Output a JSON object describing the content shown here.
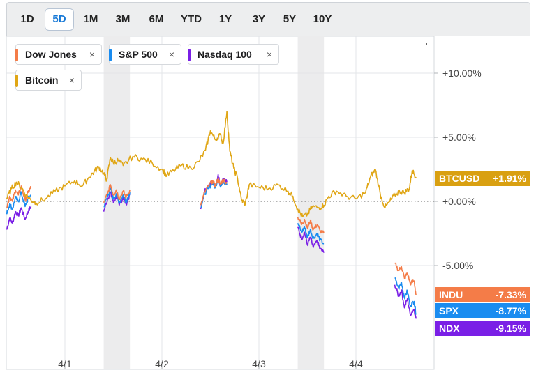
{
  "timeframe_tabs": [
    "1D",
    "5D",
    "1M",
    "3M",
    "6M",
    "YTD",
    "1Y",
    "3Y",
    "5Y",
    "10Y"
  ],
  "active_tab": "5D",
  "legend": [
    {
      "label": "Dow Jones",
      "color": "#f47c48"
    },
    {
      "label": "S&P 500",
      "color": "#1a8cf0"
    },
    {
      "label": "Nasdaq 100",
      "color": "#7a1fe6"
    },
    {
      "label": "Bitcoin",
      "color": "#e0a615"
    }
  ],
  "close_glyph": "×",
  "end_tags": [
    {
      "symbol": "BTCUSD",
      "value": "+1.91%",
      "color": "#d9a011"
    },
    {
      "symbol": "INDU",
      "value": "-7.33%",
      "color": "#f47c48"
    },
    {
      "symbol": "SPX",
      "value": "-8.77%",
      "color": "#1a8cf0"
    },
    {
      "symbol": "NDX",
      "value": "-9.15%",
      "color": "#7a1fe6"
    }
  ],
  "chart_data": {
    "type": "line",
    "x_tick_labels": [
      "4/1",
      "4/2",
      "4/3",
      "4/4"
    ],
    "y_tick_labels": [
      "+10.00%",
      "+5.00%",
      "+0.00%",
      "-5.00%"
    ],
    "y_ticks": [
      10,
      5,
      0,
      -5
    ],
    "ylim": [
      -10,
      12
    ],
    "x_unit": "days from 4/1 00:00 (local)",
    "xlim": [
      -0.6,
      3.8
    ],
    "shaded_sessions": [
      [
        0.4,
        0.67
      ],
      [
        2.4,
        2.67
      ]
    ],
    "zero_line": "dotted",
    "grid": "vertical at day ticks, horizontal at percent ticks",
    "series": [
      {
        "name": "Bitcoin",
        "color": "#e0a615",
        "points": [
          [
            -0.6,
            0.2
          ],
          [
            -0.55,
            1.0
          ],
          [
            -0.5,
            1.5
          ],
          [
            -0.45,
            1.1
          ],
          [
            -0.4,
            0.5
          ],
          [
            -0.35,
            0.1
          ],
          [
            -0.3,
            -0.1
          ],
          [
            -0.2,
            0.2
          ],
          [
            -0.1,
            0.8
          ],
          [
            0.0,
            1.2
          ],
          [
            0.1,
            1.6
          ],
          [
            0.18,
            1.2
          ],
          [
            0.25,
            1.9
          ],
          [
            0.3,
            2.3
          ],
          [
            0.35,
            2.7
          ],
          [
            0.4,
            2.2
          ],
          [
            0.43,
            1.7
          ],
          [
            0.47,
            3.4
          ],
          [
            0.5,
            3.0
          ],
          [
            0.55,
            3.2
          ],
          [
            0.6,
            2.8
          ],
          [
            0.7,
            3.5
          ],
          [
            0.8,
            3.3
          ],
          [
            0.9,
            3.0
          ],
          [
            1.0,
            2.5
          ],
          [
            1.05,
            2.0
          ],
          [
            1.12,
            2.4
          ],
          [
            1.2,
            2.8
          ],
          [
            1.3,
            2.6
          ],
          [
            1.38,
            3.1
          ],
          [
            1.45,
            4.0
          ],
          [
            1.5,
            5.5
          ],
          [
            1.55,
            4.8
          ],
          [
            1.6,
            5.2
          ],
          [
            1.63,
            4.5
          ],
          [
            1.67,
            7.0
          ],
          [
            1.7,
            3.9
          ],
          [
            1.74,
            2.6
          ],
          [
            1.78,
            1.8
          ],
          [
            1.82,
            0.1
          ],
          [
            1.86,
            -0.2
          ],
          [
            1.9,
            1.3
          ],
          [
            2.0,
            1.1
          ],
          [
            2.1,
            1.0
          ],
          [
            2.2,
            1.3
          ],
          [
            2.3,
            0.8
          ],
          [
            2.35,
            0.4
          ],
          [
            2.4,
            -0.6
          ],
          [
            2.45,
            -1.2
          ],
          [
            2.5,
            -1.0
          ],
          [
            2.55,
            -0.4
          ],
          [
            2.62,
            -0.5
          ],
          [
            2.67,
            -0.3
          ],
          [
            2.72,
            0.4
          ],
          [
            2.8,
            0.8
          ],
          [
            2.9,
            0.4
          ],
          [
            3.0,
            0.2
          ],
          [
            3.1,
            0.7
          ],
          [
            3.15,
            1.9
          ],
          [
            3.2,
            2.5
          ],
          [
            3.25,
            0.6
          ],
          [
            3.3,
            -0.5
          ],
          [
            3.35,
            0.0
          ],
          [
            3.4,
            0.5
          ],
          [
            3.45,
            0.8
          ],
          [
            3.5,
            0.7
          ],
          [
            3.55,
            1.0
          ],
          [
            3.58,
            2.4
          ],
          [
            3.62,
            1.91
          ]
        ]
      },
      {
        "name": "Dow Jones",
        "color": "#f47c48",
        "segments": [
          [
            [
              -0.6,
              -0.5
            ],
            [
              -0.57,
              0.4
            ],
            [
              -0.54,
              0.0
            ],
            [
              -0.51,
              0.9
            ],
            [
              -0.48,
              0.5
            ],
            [
              -0.45,
              1.2
            ],
            [
              -0.41,
              0.1
            ],
            [
              -0.38,
              0.7
            ],
            [
              -0.35,
              1.1
            ]
          ],
          [
            [
              0.4,
              -0.1
            ],
            [
              0.44,
              0.6
            ],
            [
              0.47,
              1.3
            ],
            [
              0.5,
              0.5
            ],
            [
              0.53,
              0.9
            ],
            [
              0.56,
              0.2
            ],
            [
              0.6,
              0.8
            ],
            [
              0.63,
              0.3
            ],
            [
              0.67,
              0.9
            ]
          ],
          [
            [
              1.4,
              -0.3
            ],
            [
              1.44,
              0.7
            ],
            [
              1.48,
              1.2
            ],
            [
              1.52,
              1.6
            ],
            [
              1.55,
              1.2
            ],
            [
              1.58,
              1.8
            ],
            [
              1.6,
              1.3
            ],
            [
              1.63,
              1.7
            ],
            [
              1.67,
              1.4
            ]
          ],
          [
            [
              2.4,
              -1.2
            ],
            [
              2.44,
              -1.8
            ],
            [
              2.47,
              -1.4
            ],
            [
              2.5,
              -2.1
            ],
            [
              2.53,
              -1.5
            ],
            [
              2.56,
              -2.2
            ],
            [
              2.6,
              -1.8
            ],
            [
              2.63,
              -2.3
            ],
            [
              2.67,
              -2.5
            ]
          ],
          [
            [
              3.4,
              -4.8
            ],
            [
              3.44,
              -5.4
            ],
            [
              3.47,
              -5.1
            ],
            [
              3.5,
              -6.0
            ],
            [
              3.53,
              -5.6
            ],
            [
              3.56,
              -6.4
            ],
            [
              3.6,
              -6.2
            ],
            [
              3.62,
              -7.33
            ]
          ]
        ]
      },
      {
        "name": "S&P 500",
        "color": "#1a8cf0",
        "segments": [
          [
            [
              -0.6,
              -1.0
            ],
            [
              -0.57,
              -0.2
            ],
            [
              -0.54,
              -0.6
            ],
            [
              -0.51,
              0.3
            ],
            [
              -0.48,
              0.0
            ],
            [
              -0.45,
              0.7
            ],
            [
              -0.41,
              -0.4
            ],
            [
              -0.38,
              0.2
            ],
            [
              -0.35,
              0.5
            ]
          ],
          [
            [
              0.4,
              -0.4
            ],
            [
              0.44,
              0.4
            ],
            [
              0.47,
              1.0
            ],
            [
              0.5,
              0.2
            ],
            [
              0.53,
              0.6
            ],
            [
              0.56,
              -0.1
            ],
            [
              0.6,
              0.5
            ],
            [
              0.63,
              0.0
            ],
            [
              0.67,
              0.7
            ]
          ],
          [
            [
              1.4,
              -0.5
            ],
            [
              1.44,
              0.6
            ],
            [
              1.48,
              1.0
            ],
            [
              1.52,
              1.5
            ],
            [
              1.55,
              1.1
            ],
            [
              1.58,
              1.8
            ],
            [
              1.6,
              1.2
            ],
            [
              1.63,
              1.6
            ],
            [
              1.67,
              1.3
            ]
          ],
          [
            [
              2.4,
              -1.7
            ],
            [
              2.44,
              -2.4
            ],
            [
              2.47,
              -2.0
            ],
            [
              2.5,
              -2.8
            ],
            [
              2.53,
              -2.2
            ],
            [
              2.56,
              -2.9
            ],
            [
              2.6,
              -2.5
            ],
            [
              2.63,
              -3.0
            ],
            [
              2.67,
              -3.3
            ]
          ],
          [
            [
              3.4,
              -6.0
            ],
            [
              3.44,
              -6.8
            ],
            [
              3.47,
              -6.3
            ],
            [
              3.5,
              -7.5
            ],
            [
              3.53,
              -7.0
            ],
            [
              3.56,
              -8.1
            ],
            [
              3.6,
              -7.8
            ],
            [
              3.62,
              -8.77
            ]
          ]
        ]
      },
      {
        "name": "Nasdaq 100",
        "color": "#7a1fe6",
        "segments": [
          [
            [
              -0.6,
              -2.2
            ],
            [
              -0.57,
              -1.3
            ],
            [
              -0.54,
              -1.7
            ],
            [
              -0.51,
              -0.8
            ],
            [
              -0.48,
              -1.1
            ],
            [
              -0.45,
              -0.5
            ],
            [
              -0.41,
              -1.4
            ],
            [
              -0.38,
              -0.8
            ],
            [
              -0.35,
              -0.4
            ]
          ],
          [
            [
              0.4,
              -0.8
            ],
            [
              0.44,
              0.2
            ],
            [
              0.47,
              0.7
            ],
            [
              0.5,
              -0.1
            ],
            [
              0.53,
              0.4
            ],
            [
              0.56,
              -0.3
            ],
            [
              0.6,
              0.3
            ],
            [
              0.63,
              -0.2
            ],
            [
              0.67,
              0.5
            ]
          ],
          [
            [
              1.4,
              -0.6
            ],
            [
              1.44,
              0.8
            ],
            [
              1.48,
              1.2
            ],
            [
              1.52,
              1.6
            ],
            [
              1.55,
              1.1
            ],
            [
              1.58,
              2.1
            ],
            [
              1.6,
              1.3
            ],
            [
              1.63,
              1.8
            ],
            [
              1.67,
              1.5
            ]
          ],
          [
            [
              2.4,
              -2.0
            ],
            [
              2.44,
              -2.9
            ],
            [
              2.47,
              -2.4
            ],
            [
              2.5,
              -3.4
            ],
            [
              2.53,
              -2.8
            ],
            [
              2.56,
              -3.6
            ],
            [
              2.6,
              -3.1
            ],
            [
              2.63,
              -3.7
            ],
            [
              2.67,
              -4.0
            ]
          ],
          [
            [
              3.4,
              -6.5
            ],
            [
              3.44,
              -7.4
            ],
            [
              3.47,
              -6.9
            ],
            [
              3.5,
              -8.3
            ],
            [
              3.53,
              -7.6
            ],
            [
              3.56,
              -8.8
            ],
            [
              3.6,
              -8.4
            ],
            [
              3.62,
              -9.15
            ]
          ]
        ]
      }
    ]
  }
}
